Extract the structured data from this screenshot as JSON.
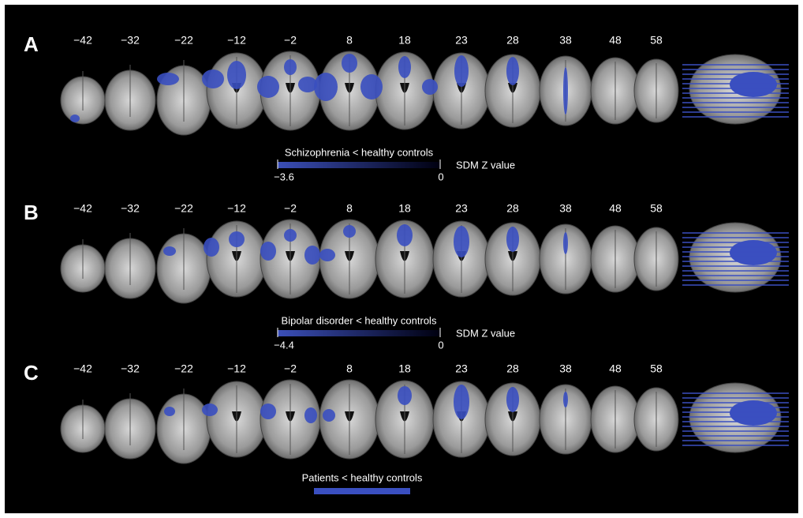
{
  "panels": [
    {
      "label": "A",
      "slices": [
        "−42",
        "−32",
        "−22",
        "−12",
        "−2",
        "8",
        "18",
        "23",
        "28",
        "38",
        "48",
        "58"
      ],
      "legend": {
        "title": "Schizophrenia < healthy controls",
        "min": "−3.6",
        "max": "0",
        "axis": "SDM Z value"
      }
    },
    {
      "label": "B",
      "slices": [
        "−42",
        "−32",
        "−22",
        "−12",
        "−2",
        "8",
        "18",
        "23",
        "28",
        "38",
        "48",
        "58"
      ],
      "legend": {
        "title": "Bipolar disorder < healthy controls",
        "min": "−4.4",
        "max": "0",
        "axis": "SDM Z value"
      }
    },
    {
      "label": "C",
      "slices": [
        "−42",
        "−32",
        "−22",
        "−12",
        "−2",
        "8",
        "18",
        "23",
        "28",
        "38",
        "48",
        "58"
      ],
      "legend": {
        "title": "Patients < healthy controls"
      }
    }
  ]
}
